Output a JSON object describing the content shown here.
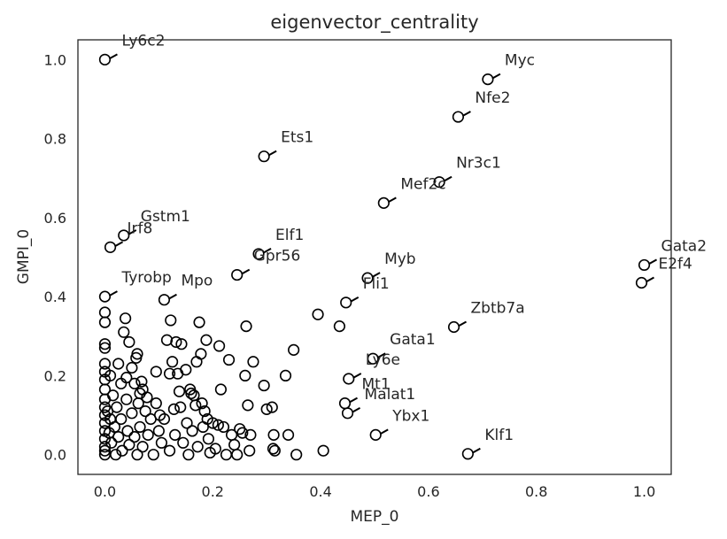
{
  "chart_data": {
    "type": "scatter",
    "title": "eigenvector_centrality",
    "xlabel": "MEP_0",
    "ylabel": "GMPI_0",
    "xlim": [
      -0.05,
      1.05
    ],
    "ylim": [
      -0.05,
      1.05
    ],
    "xticks": [
      0.0,
      0.2,
      0.4,
      0.6,
      0.8,
      1.0
    ],
    "xtick_labels": [
      "0.0",
      "0.2",
      "0.4",
      "0.6",
      "0.8",
      "1.0"
    ],
    "yticks": [
      0.0,
      0.2,
      0.4,
      0.6,
      0.8,
      1.0
    ],
    "ytick_labels": [
      "0.0",
      "0.2",
      "0.4",
      "0.6",
      "0.8",
      "1.0"
    ],
    "grid": false,
    "marker": "open-circle",
    "marker_color": "#000000",
    "labeled_points": [
      {
        "label": "Ly6c2",
        "x": 0.0,
        "y": 1.0
      },
      {
        "label": "Myc",
        "x": 0.71,
        "y": 0.95
      },
      {
        "label": "Nfe2",
        "x": 0.655,
        "y": 0.855
      },
      {
        "label": "Ets1",
        "x": 0.295,
        "y": 0.755
      },
      {
        "label": "Nr3c1",
        "x": 0.62,
        "y": 0.69
      },
      {
        "label": "Mef2c",
        "x": 0.517,
        "y": 0.637
      },
      {
        "label": "Gstm1",
        "x": 0.035,
        "y": 0.555
      },
      {
        "label": "Irf8",
        "x": 0.01,
        "y": 0.525
      },
      {
        "label": "Elf1",
        "x": 0.285,
        "y": 0.508
      },
      {
        "label": "Gpr56",
        "x": 0.245,
        "y": 0.455
      },
      {
        "label": "Gata2",
        "x": 1.0,
        "y": 0.48
      },
      {
        "label": "E2f4",
        "x": 0.995,
        "y": 0.435
      },
      {
        "label": "Myb",
        "x": 0.487,
        "y": 0.447
      },
      {
        "label": "Tyrobp",
        "x": 0.0,
        "y": 0.4
      },
      {
        "label": "Mpo",
        "x": 0.11,
        "y": 0.392
      },
      {
        "label": "Fli1",
        "x": 0.447,
        "y": 0.385
      },
      {
        "label": "Zbtb7a",
        "x": 0.647,
        "y": 0.323
      },
      {
        "label": "Gata1",
        "x": 0.497,
        "y": 0.243
      },
      {
        "label": "Ly6e",
        "x": 0.452,
        "y": 0.192
      },
      {
        "label": "Mt1",
        "x": 0.445,
        "y": 0.13
      },
      {
        "label": "Malat1",
        "x": 0.45,
        "y": 0.105
      },
      {
        "label": "Ybx1",
        "x": 0.502,
        "y": 0.05
      },
      {
        "label": "Klf1",
        "x": 0.673,
        "y": 0.002
      }
    ],
    "points": [
      [
        0.0,
        0.36
      ],
      [
        0.0,
        0.335
      ],
      [
        0.0,
        0.28
      ],
      [
        0.0,
        0.27
      ],
      [
        0.0,
        0.23
      ],
      [
        0.0,
        0.21
      ],
      [
        0.0,
        0.19
      ],
      [
        0.0,
        0.165
      ],
      [
        0.0,
        0.14
      ],
      [
        0.0,
        0.12
      ],
      [
        0.0,
        0.1
      ],
      [
        0.0,
        0.08
      ],
      [
        0.0,
        0.06
      ],
      [
        0.0,
        0.04
      ],
      [
        0.0,
        0.02
      ],
      [
        0.0,
        0.01
      ],
      [
        0.0,
        0.0
      ],
      [
        0.005,
        0.11
      ],
      [
        0.008,
        0.055
      ],
      [
        0.01,
        0.2
      ],
      [
        0.01,
        0.09
      ],
      [
        0.012,
        0.03
      ],
      [
        0.015,
        0.15
      ],
      [
        0.018,
        0.07
      ],
      [
        0.02,
        0.0
      ],
      [
        0.022,
        0.12
      ],
      [
        0.025,
        0.23
      ],
      [
        0.025,
        0.045
      ],
      [
        0.03,
        0.18
      ],
      [
        0.03,
        0.09
      ],
      [
        0.032,
        0.01
      ],
      [
        0.035,
        0.31
      ],
      [
        0.038,
        0.345
      ],
      [
        0.04,
        0.14
      ],
      [
        0.04,
        0.195
      ],
      [
        0.042,
        0.06
      ],
      [
        0.045,
        0.285
      ],
      [
        0.045,
        0.025
      ],
      [
        0.05,
        0.22
      ],
      [
        0.05,
        0.105
      ],
      [
        0.055,
        0.18
      ],
      [
        0.055,
        0.045
      ],
      [
        0.058,
        0.245
      ],
      [
        0.06,
        0.255
      ],
      [
        0.06,
        0.0
      ],
      [
        0.062,
        0.13
      ],
      [
        0.065,
        0.155
      ],
      [
        0.065,
        0.07
      ],
      [
        0.068,
        0.185
      ],
      [
        0.07,
        0.165
      ],
      [
        0.07,
        0.02
      ],
      [
        0.075,
        0.11
      ],
      [
        0.078,
        0.145
      ],
      [
        0.08,
        0.05
      ],
      [
        0.085,
        0.09
      ],
      [
        0.09,
        0.0
      ],
      [
        0.095,
        0.21
      ],
      [
        0.095,
        0.13
      ],
      [
        0.1,
        0.06
      ],
      [
        0.102,
        0.1
      ],
      [
        0.105,
        0.03
      ],
      [
        0.11,
        0.09
      ],
      [
        0.115,
        0.29
      ],
      [
        0.12,
        0.205
      ],
      [
        0.12,
        0.01
      ],
      [
        0.122,
        0.34
      ],
      [
        0.125,
        0.235
      ],
      [
        0.128,
        0.115
      ],
      [
        0.13,
        0.05
      ],
      [
        0.132,
        0.285
      ],
      [
        0.135,
        0.205
      ],
      [
        0.138,
        0.16
      ],
      [
        0.14,
        0.12
      ],
      [
        0.142,
        0.28
      ],
      [
        0.145,
        0.03
      ],
      [
        0.15,
        0.215
      ],
      [
        0.152,
        0.08
      ],
      [
        0.155,
        0.0
      ],
      [
        0.158,
        0.165
      ],
      [
        0.16,
        0.155
      ],
      [
        0.162,
        0.06
      ],
      [
        0.165,
        0.15
      ],
      [
        0.168,
        0.125
      ],
      [
        0.17,
        0.235
      ],
      [
        0.172,
        0.02
      ],
      [
        0.175,
        0.335
      ],
      [
        0.178,
        0.255
      ],
      [
        0.18,
        0.13
      ],
      [
        0.182,
        0.07
      ],
      [
        0.185,
        0.11
      ],
      [
        0.188,
        0.29
      ],
      [
        0.19,
        0.09
      ],
      [
        0.192,
        0.04
      ],
      [
        0.195,
        0.005
      ],
      [
        0.2,
        0.08
      ],
      [
        0.205,
        0.015
      ],
      [
        0.21,
        0.075
      ],
      [
        0.212,
        0.275
      ],
      [
        0.215,
        0.165
      ],
      [
        0.22,
        0.07
      ],
      [
        0.225,
        0.0
      ],
      [
        0.23,
        0.24
      ],
      [
        0.235,
        0.05
      ],
      [
        0.24,
        0.025
      ],
      [
        0.245,
        0.0
      ],
      [
        0.25,
        0.065
      ],
      [
        0.255,
        0.055
      ],
      [
        0.26,
        0.2
      ],
      [
        0.262,
        0.325
      ],
      [
        0.265,
        0.125
      ],
      [
        0.268,
        0.01
      ],
      [
        0.27,
        0.05
      ],
      [
        0.275,
        0.235
      ],
      [
        0.295,
        0.175
      ],
      [
        0.3,
        0.115
      ],
      [
        0.31,
        0.12
      ],
      [
        0.312,
        0.015
      ],
      [
        0.313,
        0.05
      ],
      [
        0.315,
        0.01
      ],
      [
        0.335,
        0.2
      ],
      [
        0.34,
        0.05
      ],
      [
        0.35,
        0.265
      ],
      [
        0.355,
        0.0
      ],
      [
        0.395,
        0.355
      ],
      [
        0.405,
        0.01
      ],
      [
        0.435,
        0.325
      ]
    ]
  }
}
